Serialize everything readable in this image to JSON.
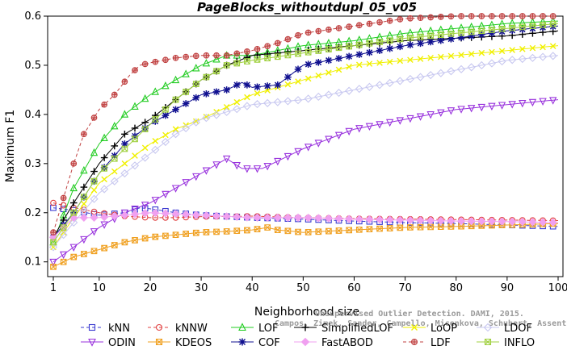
{
  "chart_data": {
    "type": "line",
    "title": "PageBlocks_withoutdupl_05_v05",
    "xlabel": "Neighborhood size",
    "ylabel": "Maximum F1",
    "xlim": [
      1,
      100
    ],
    "ylim": [
      0.07,
      0.6
    ],
    "x_ticks": [
      1,
      10,
      20,
      30,
      40,
      50,
      60,
      70,
      80,
      90,
      100
    ],
    "y_ticks": [
      0.1,
      0.2,
      0.3,
      0.4,
      0.5,
      0.6
    ],
    "grid": false,
    "legend_position": "bottom",
    "watermark": [
      "Unsupervised Outlier Detection. DAMI, 2015.",
      "Campos, Zimek, Sander, Campello, Micenkova, Schubert, Assent, Houle"
    ],
    "series": [
      {
        "name": "kNN",
        "color": "#3a3ad0",
        "marker": "square",
        "dash": "4,3",
        "x": [
          1,
          5,
          10,
          15,
          18,
          20,
          25,
          30,
          40,
          50,
          60,
          70,
          80,
          90,
          100
        ],
        "y": [
          0.21,
          0.205,
          0.195,
          0.2,
          0.21,
          0.208,
          0.2,
          0.195,
          0.19,
          0.187,
          0.183,
          0.18,
          0.178,
          0.175,
          0.172
        ]
      },
      {
        "name": "kNNW",
        "color": "#e04040",
        "marker": "circle",
        "dash": "4,3",
        "x": [
          1,
          5,
          10,
          15,
          20,
          25,
          30,
          40,
          50,
          60,
          70,
          80,
          90,
          100
        ],
        "y": [
          0.22,
          0.21,
          0.2,
          0.193,
          0.19,
          0.19,
          0.192,
          0.193,
          0.19,
          0.188,
          0.187,
          0.186,
          0.185,
          0.184
        ]
      },
      {
        "name": "LOF",
        "color": "#22cc22",
        "marker": "triangle-up",
        "dash": "",
        "x": [
          1,
          5,
          10,
          15,
          20,
          25,
          30,
          35,
          40,
          50,
          60,
          70,
          80,
          90,
          100
        ],
        "y": [
          0.14,
          0.25,
          0.34,
          0.4,
          0.44,
          0.47,
          0.5,
          0.52,
          0.52,
          0.54,
          0.55,
          0.565,
          0.575,
          0.585,
          0.59
        ]
      },
      {
        "name": "SimplifiedLOF",
        "color": "#000000",
        "marker": "plus",
        "dash": "",
        "x": [
          1,
          5,
          10,
          15,
          20,
          25,
          30,
          35,
          40,
          50,
          60,
          70,
          80,
          90,
          100
        ],
        "y": [
          0.15,
          0.22,
          0.3,
          0.36,
          0.39,
          0.43,
          0.47,
          0.5,
          0.52,
          0.53,
          0.54,
          0.55,
          0.555,
          0.56,
          0.57
        ]
      },
      {
        "name": "LoOP",
        "color": "#f0f000",
        "marker": "x",
        "dash": "",
        "x": [
          1,
          5,
          10,
          15,
          20,
          25,
          30,
          40,
          50,
          60,
          70,
          80,
          90,
          100
        ],
        "y": [
          0.13,
          0.19,
          0.26,
          0.3,
          0.34,
          0.37,
          0.39,
          0.44,
          0.47,
          0.5,
          0.51,
          0.52,
          0.53,
          0.54
        ]
      },
      {
        "name": "LDOF",
        "color": "#c8c8f0",
        "marker": "diamond",
        "dash": "",
        "x": [
          1,
          5,
          10,
          15,
          20,
          25,
          30,
          40,
          50,
          60,
          70,
          80,
          90,
          100
        ],
        "y": [
          0.13,
          0.18,
          0.24,
          0.28,
          0.32,
          0.36,
          0.39,
          0.42,
          0.43,
          0.45,
          0.47,
          0.49,
          0.51,
          0.52
        ]
      },
      {
        "name": "ODIN",
        "color": "#9933dd",
        "marker": "triangle-down",
        "dash": "",
        "x": [
          1,
          5,
          10,
          15,
          20,
          25,
          30,
          35,
          38,
          42,
          50,
          60,
          70,
          80,
          90,
          100
        ],
        "y": [
          0.1,
          0.13,
          0.17,
          0.2,
          0.22,
          0.25,
          0.28,
          0.31,
          0.29,
          0.29,
          0.33,
          0.37,
          0.39,
          0.41,
          0.42,
          0.43
        ]
      },
      {
        "name": "KDEOS",
        "color": "#f0a020",
        "marker": "square-x",
        "dash": "",
        "x": [
          1,
          5,
          10,
          15,
          20,
          25,
          30,
          35,
          40,
          43,
          45,
          50,
          60,
          70,
          80,
          90,
          100
        ],
        "y": [
          0.09,
          0.11,
          0.125,
          0.14,
          0.15,
          0.155,
          0.16,
          0.162,
          0.165,
          0.17,
          0.165,
          0.16,
          0.165,
          0.17,
          0.172,
          0.175,
          0.178
        ]
      },
      {
        "name": "COF",
        "color": "#101090",
        "marker": "star",
        "dash": "",
        "x": [
          1,
          5,
          10,
          15,
          20,
          25,
          30,
          35,
          38,
          40,
          45,
          50,
          60,
          70,
          80,
          90,
          100
        ],
        "y": [
          0.15,
          0.2,
          0.28,
          0.34,
          0.38,
          0.41,
          0.44,
          0.45,
          0.465,
          0.455,
          0.46,
          0.5,
          0.52,
          0.54,
          0.555,
          0.57,
          0.58
        ]
      },
      {
        "name": "FastABOD",
        "color": "#f0a0f0",
        "marker": "diamond-filled",
        "dash": "",
        "x": [
          1,
          5,
          10,
          15,
          20,
          30,
          40,
          50,
          60,
          70,
          80,
          90,
          100
        ],
        "y": [
          0.15,
          0.19,
          0.19,
          0.195,
          0.2,
          0.195,
          0.19,
          0.19,
          0.187,
          0.185,
          0.183,
          0.182,
          0.18
        ]
      },
      {
        "name": "LDF",
        "color": "#c04040",
        "marker": "circle-plus",
        "dash": "4,3",
        "x": [
          1,
          3,
          5,
          7,
          10,
          13,
          16,
          18,
          20,
          25,
          30,
          35,
          40,
          45,
          50,
          60,
          70,
          80,
          90,
          100
        ],
        "y": [
          0.16,
          0.23,
          0.3,
          0.36,
          0.41,
          0.44,
          0.48,
          0.5,
          0.505,
          0.515,
          0.52,
          0.52,
          0.53,
          0.545,
          0.565,
          0.58,
          0.595,
          0.6,
          0.6,
          0.6
        ]
      },
      {
        "name": "INFLO",
        "color": "#a0d040",
        "marker": "asterisk",
        "dash": "",
        "x": [
          1,
          5,
          10,
          15,
          20,
          25,
          30,
          35,
          40,
          50,
          60,
          70,
          80,
          90,
          100
        ],
        "y": [
          0.14,
          0.2,
          0.28,
          0.33,
          0.38,
          0.43,
          0.47,
          0.5,
          0.51,
          0.525,
          0.54,
          0.555,
          0.565,
          0.575,
          0.585
        ]
      }
    ]
  }
}
